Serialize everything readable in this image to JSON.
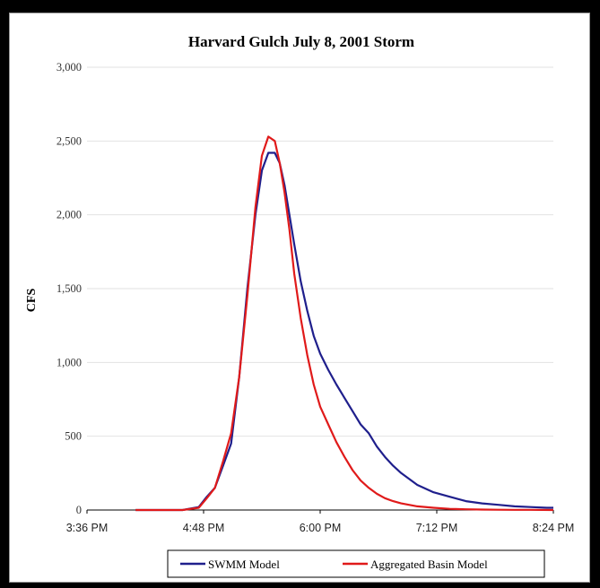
{
  "chart_data": {
    "type": "line",
    "title": "Harvard Gulch July 8, 2001 Storm",
    "xlabel": "",
    "ylabel": "CFS",
    "x_ticks": [
      "3:36 PM",
      "4:48 PM",
      "6:00 PM",
      "7:12 PM",
      "8:24 PM"
    ],
    "x_tick_minutes": [
      216,
      288,
      360,
      432,
      504
    ],
    "xlim_minutes": [
      216,
      504
    ],
    "y_ticks": [
      "0",
      "500",
      "1,000",
      "1,500",
      "2,000",
      "2,500",
      "3,000"
    ],
    "ylim": [
      0,
      3000
    ],
    "grid": "horizontal",
    "legend_position": "bottom",
    "series": [
      {
        "name": "SWMM Model",
        "color": "#1f1f8c",
        "x_minutes": [
          246,
          260,
          275,
          285,
          290,
          295,
          300,
          305,
          310,
          315,
          320,
          324,
          328,
          332,
          335,
          338,
          341,
          344,
          348,
          352,
          356,
          360,
          365,
          370,
          375,
          380,
          385,
          390,
          395,
          400,
          405,
          410,
          415,
          420,
          430,
          440,
          450,
          460,
          470,
          480,
          490,
          500,
          504
        ],
        "values": [
          0,
          0,
          0,
          20,
          90,
          150,
          300,
          450,
          900,
          1500,
          2000,
          2300,
          2420,
          2420,
          2350,
          2200,
          2000,
          1800,
          1550,
          1350,
          1180,
          1060,
          950,
          850,
          760,
          670,
          580,
          520,
          430,
          360,
          300,
          250,
          210,
          170,
          120,
          90,
          60,
          45,
          35,
          25,
          20,
          15,
          15
        ]
      },
      {
        "name": "Aggregated Basin Model",
        "color": "#e01a1a",
        "x_minutes": [
          246,
          260,
          275,
          285,
          290,
          295,
          300,
          305,
          310,
          315,
          320,
          324,
          328,
          332,
          335,
          338,
          341,
          344,
          348,
          352,
          356,
          360,
          365,
          370,
          375,
          380,
          385,
          390,
          395,
          400,
          405,
          410,
          420,
          430,
          440,
          450,
          460,
          470,
          480,
          490,
          504
        ],
        "values": [
          0,
          0,
          0,
          15,
          80,
          150,
          330,
          520,
          900,
          1450,
          2050,
          2400,
          2530,
          2500,
          2350,
          2150,
          1900,
          1600,
          1300,
          1050,
          850,
          700,
          580,
          460,
          360,
          270,
          200,
          150,
          110,
          80,
          60,
          45,
          25,
          15,
          8,
          5,
          3,
          2,
          1,
          1,
          0
        ]
      }
    ]
  }
}
